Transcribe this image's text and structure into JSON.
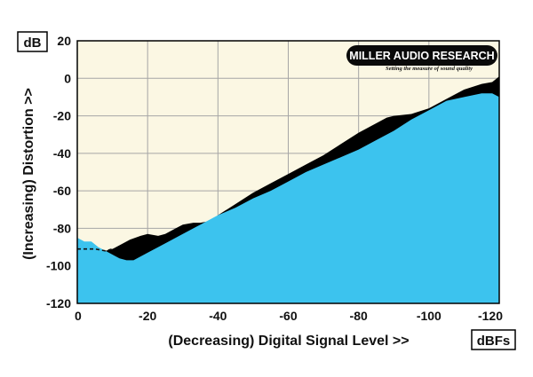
{
  "chart_data": {
    "type": "area",
    "ylabel": "(Increasing) Distortion >>",
    "xlabel": "(Decreasing) Digital Signal Level >>",
    "y_unit": "dB",
    "x_unit": "dBFs",
    "xlim": [
      0,
      -120
    ],
    "ylim": [
      -120,
      20
    ],
    "x_ticks": [
      0,
      -20,
      -40,
      -60,
      -80,
      -100,
      -120
    ],
    "x_tick_labels": [
      "0",
      "-20",
      "-40",
      "-60",
      "-80",
      "-100",
      "-120"
    ],
    "y_ticks": [
      20,
      0,
      -20,
      -40,
      -60,
      -80,
      -100,
      -120
    ],
    "y_tick_labels": [
      "20",
      "0",
      "-20",
      "-40",
      "-60",
      "-80",
      "-100",
      "-120"
    ],
    "grid": true,
    "series": [
      {
        "color": "#000000",
        "x": [
          0,
          -5,
          -8,
          -10,
          -12,
          -15,
          -18,
          -20,
          -23,
          -25,
          -28,
          -30,
          -33,
          -35,
          -38,
          -40,
          -45,
          -50,
          -55,
          -60,
          -65,
          -70,
          -75,
          -80,
          -85,
          -88,
          -90,
          -95,
          -100,
          -105,
          -110,
          -115,
          -118,
          -120
        ],
        "y": [
          -91,
          -91,
          -92,
          -91,
          -89,
          -86,
          -84,
          -83,
          -84,
          -83,
          -80,
          -78,
          -77,
          -77,
          -76,
          -73,
          -67,
          -61,
          -56,
          -51,
          -46,
          -41,
          -35,
          -29,
          -24,
          -21,
          -20,
          -19,
          -16,
          -11,
          -6,
          -3,
          -2,
          1
        ]
      },
      {
        "color": "#3cc3ee",
        "x": [
          0,
          -2,
          -4,
          -6,
          -8,
          -10,
          -12,
          -14,
          -15,
          -16,
          -18,
          -20,
          -25,
          -30,
          -35,
          -40,
          -45,
          -50,
          -55,
          -60,
          -65,
          -70,
          -75,
          -80,
          -85,
          -90,
          -95,
          -100,
          -105,
          -110,
          -115,
          -118,
          -120
        ],
        "y": [
          -85,
          -87,
          -87,
          -90,
          -92,
          -94,
          -96,
          -97,
          -97,
          -97,
          -95,
          -93,
          -88,
          -83,
          -78,
          -73,
          -69,
          -64,
          -60,
          -55,
          -50,
          -46,
          -42,
          -38,
          -33,
          -28,
          -22,
          -17,
          -12,
          -10,
          -8,
          -8,
          -10
        ]
      }
    ],
    "annotations": [
      "MILLER AUDIO RESEARCH",
      "Setting the measure of sound quality"
    ]
  },
  "colors": {
    "plot_background": "#fbf7e3",
    "grid": "#a6a6a6",
    "frame": "#000000"
  }
}
